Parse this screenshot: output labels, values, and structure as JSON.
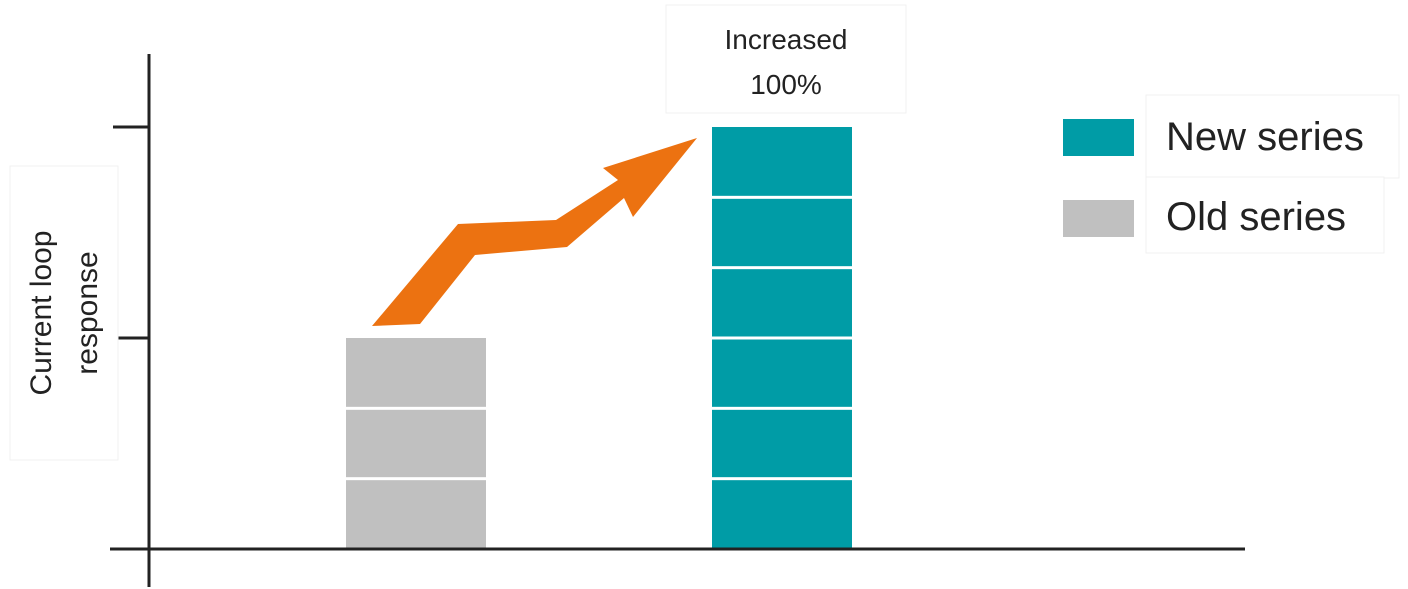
{
  "chart_data": {
    "type": "bar",
    "title": "",
    "xlabel": "",
    "ylabel": [
      "Current loop",
      "response"
    ],
    "ylim": [
      0,
      2
    ],
    "yticks": [
      1,
      2
    ],
    "grid": false,
    "legend_position": "top-right",
    "categories": [
      "",
      ""
    ],
    "series": [
      {
        "name": "Old series",
        "color": "#c0c0c0",
        "values": [
          1,
          null
        ],
        "segments": 3
      },
      {
        "name": "New series",
        "color": "#009ca6",
        "values": [
          null,
          2
        ],
        "segments": 6
      }
    ],
    "annotations": [
      {
        "type": "arrow",
        "from": "Old series",
        "to": "New series",
        "color": "#ec7211",
        "text": [
          "Increased",
          "100%"
        ]
      }
    ]
  }
}
